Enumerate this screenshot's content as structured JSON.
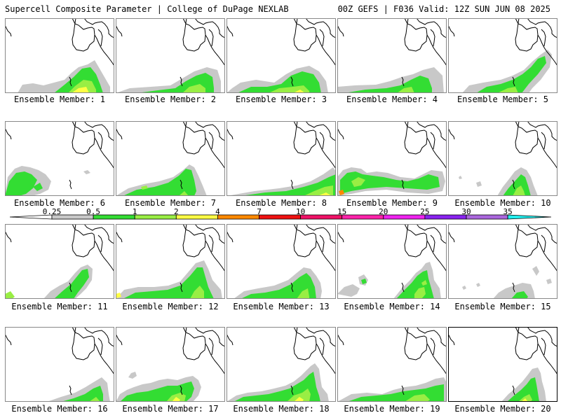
{
  "header": {
    "title_left": "Supercell Composite Parameter | College of DuPage NEXLAB",
    "title_right": "00Z GEFS | F036 Valid: 12Z SUN JUN 08 2025"
  },
  "colorbar": {
    "labels": [
      "0.25",
      "0.5",
      "1",
      "2",
      "4",
      "7",
      "10",
      "15",
      "20",
      "25",
      "30",
      "35"
    ],
    "colors": [
      "#ffffff",
      "#c8c8c8",
      "#33dd33",
      "#99ee44",
      "#ffff44",
      "#ff8800",
      "#ee1111",
      "#ee1166",
      "#ff22aa",
      "#ee22ee",
      "#8822ee",
      "#aa66dd",
      "#22eeee"
    ]
  },
  "legend": {
    "shading": [
      "#c8c8c8",
      "#33dd33",
      "#99ee44",
      "#ffff44",
      "#ff8800",
      "#ee1111"
    ]
  },
  "members": [
    {
      "label": "Ensemble Member: 1"
    },
    {
      "label": "Ensemble Member: 2"
    },
    {
      "label": "Ensemble Member: 3"
    },
    {
      "label": "Ensemble Member: 4"
    },
    {
      "label": "Ensemble Member: 5"
    },
    {
      "label": "Ensemble Member: 6"
    },
    {
      "label": "Ensemble Member: 7"
    },
    {
      "label": "Ensemble Member: 8"
    },
    {
      "label": "Ensemble Member: 9"
    },
    {
      "label": "Ensemble Member: 10"
    },
    {
      "label": "Ensemble Member: 11"
    },
    {
      "label": "Ensemble Member: 12"
    },
    {
      "label": "Ensemble Member: 13"
    },
    {
      "label": "Ensemble Member: 14"
    },
    {
      "label": "Ensemble Member: 15"
    },
    {
      "label": "Ensemble Member: 16"
    },
    {
      "label": "Ensemble Member: 17"
    },
    {
      "label": "Ensemble Member: 18"
    },
    {
      "label": "Ensemble Member: 19"
    },
    {
      "label": "Ensemble Member: 20"
    }
  ]
}
